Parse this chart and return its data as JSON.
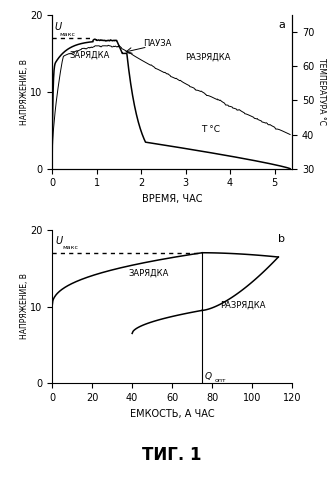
{
  "fig_title": "ΤИГ. 1",
  "panel_a": {
    "label": "a",
    "xlabel": "ВРЕМЯ, ЧАС",
    "ylabel_left": "НАПРЯЖЕНИЕ, В",
    "ylabel_right": "ТЕМПЕРАТУРА °С",
    "xlim": [
      0,
      5.4
    ],
    "ylim_left": [
      0,
      20
    ],
    "ylim_right": [
      30,
      75
    ],
    "yticks_left": [
      0,
      10,
      20
    ],
    "yticks_right": [
      30,
      40,
      50,
      60,
      70
    ],
    "xticks": [
      0,
      1,
      2,
      3,
      4,
      5
    ],
    "umax": 17.0
  },
  "panel_b": {
    "label": "b",
    "xlabel": "ЕМКОСТЬ, А ЧАС",
    "ylabel_left": "НАПРЯЖЕНИЕ, В",
    "xlim": [
      0,
      120
    ],
    "ylim": [
      0,
      20
    ],
    "yticks": [
      0,
      10,
      20
    ],
    "xticks": [
      0,
      20,
      40,
      60,
      80,
      100,
      120
    ],
    "umax": 17.0,
    "qopt": 75
  }
}
